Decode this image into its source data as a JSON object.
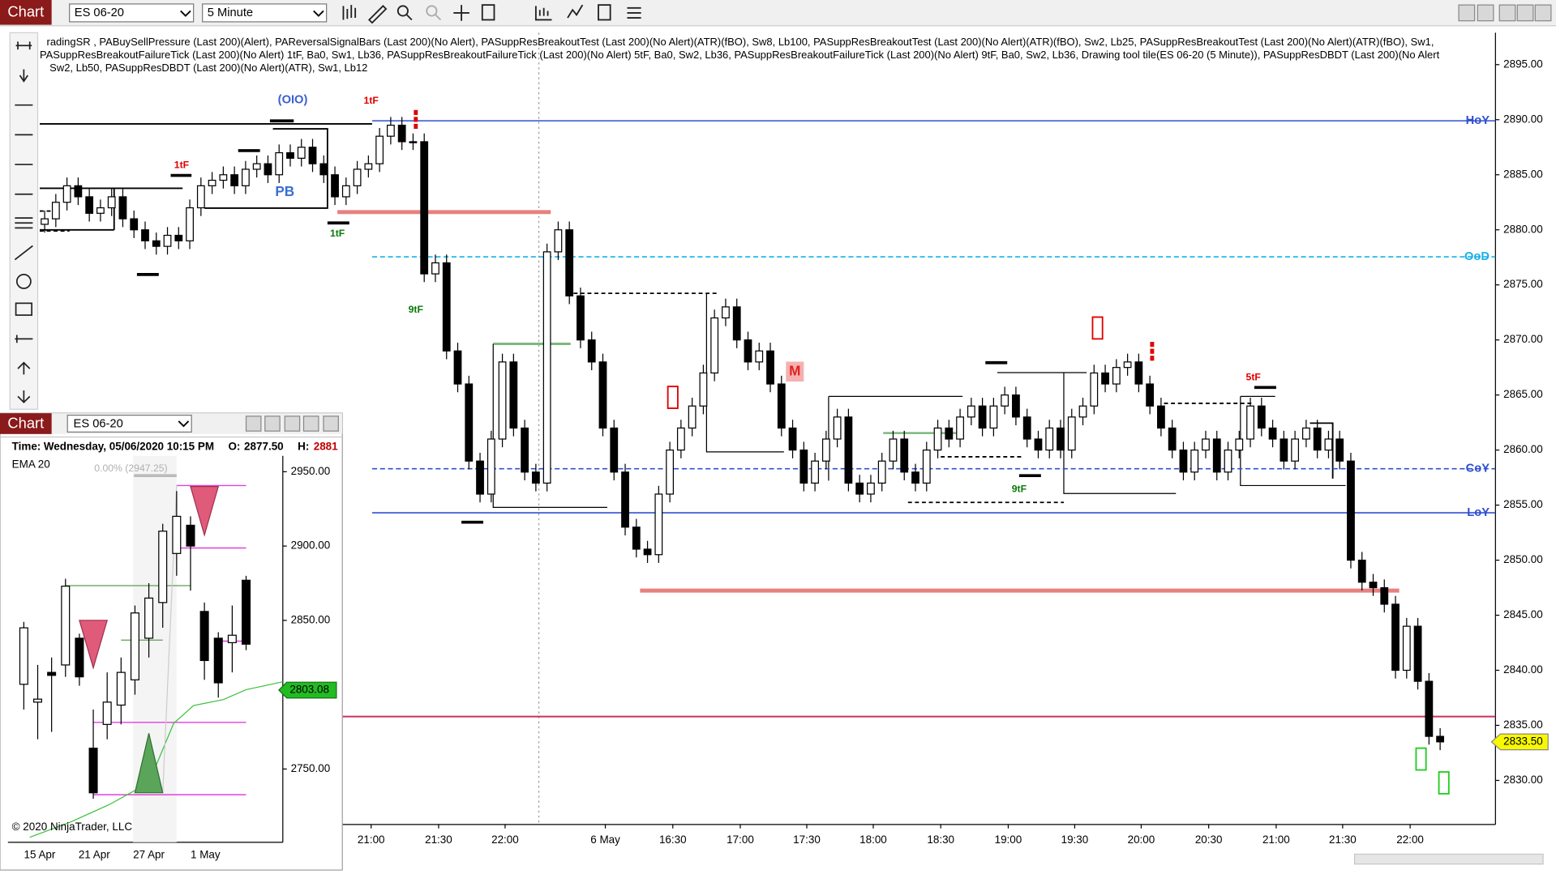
{
  "toolbar": {
    "app": "Chart",
    "instrument": "ES 06-20",
    "interval": "5 Minute"
  },
  "main_chart": {
    "type": "candlestick",
    "indicator_text": [
      "radingSR , PABuySellPressure (Last 200)(Alert), PAReversalSignalBars (Last 200)(No Alert), PASuppResBreakoutTest (Last 200)(No Alert)(ATR)(fBO),  Sw8,  Lb100, PASuppResBreakoutTest (Last 200)(No Alert)(ATR)(fBO),  Sw2,  Lb25, PASuppResBreakoutTest (Last 200)(No Alert)(ATR)(fBO),  Sw1,",
      "PASuppResBreakoutFailureTick (Last 200)(No Alert) 1tF,  Ba0,  Sw1,  Lb36, PASuppResBreakoutFailureTick (Last 200)(No Alert) 5tF,  Ba0,  Sw2,  Lb36, PASuppResBreakoutFailureTick (Last 200)(No Alert) 9tF,  Ba0,  Sw2,  Lb36, Drawing tool tile(ES 06-20 (5 Minute)), PASuppResDBDT (Last 200)(No Alert",
      "Sw2,  Lb50, PASuppResDBDT (Last 200)(No Alert)(ATR),  Sw1,  Lb12"
    ],
    "open": [
      2880.5,
      2881,
      2882.5,
      2884,
      2883,
      2881.5,
      2882,
      2883,
      2881,
      2880,
      2879,
      2878.5,
      2879.5,
      2879,
      2882,
      2884,
      2884.5,
      2885,
      2884,
      2885.5,
      2886,
      2885,
      2887,
      2886.5,
      2887.5,
      2886,
      2885,
      2883,
      2884,
      2885.5,
      2886,
      2888.5,
      2889.5,
      2888,
      2888,
      2876,
      2877,
      2869,
      2866,
      2859,
      2856,
      2861,
      2868,
      2862,
      2858,
      2857,
      2878,
      2880,
      2874,
      2870,
      2868,
      2862,
      2858,
      2853,
      2851,
      2850.5,
      2856,
      2860,
      2862,
      2864,
      2867,
      2872,
      2873,
      2870,
      2868,
      2869,
      2866,
      2862,
      2860,
      2857,
      2859,
      2861,
      2863,
      2857,
      2856,
      2857,
      2859,
      2861,
      2858,
      2857,
      2860,
      2862,
      2861,
      2863,
      2864,
      2862,
      2864,
      2865,
      2863,
      2861,
      2860,
      2862,
      2860,
      2863,
      2864,
      2867,
      2866,
      2867.5,
      2868,
      2866,
      2864,
      2862,
      2860,
      2858,
      2860,
      2861,
      2858,
      2860,
      2861,
      2864,
      2862,
      2861,
      2859,
      2861,
      2862,
      2860,
      2861,
      2859,
      2850,
      2848,
      2847.5,
      2846,
      2840,
      2844,
      2839,
      2834
    ],
    "high": [
      2881.75,
      2883.25,
      2884.75,
      2884.75,
      2883.75,
      2882.75,
      2883.75,
      2883.75,
      2881.75,
      2880.75,
      2879.75,
      2880.25,
      2880.25,
      2882.75,
      2884.75,
      2885.25,
      2885.75,
      2885.75,
      2886.25,
      2886.75,
      2886.75,
      2887.75,
      2887.75,
      2888.25,
      2888.25,
      2886.75,
      2885.75,
      2884.75,
      2886.25,
      2886.75,
      2889.25,
      2890.25,
      2890.25,
      2888.75,
      2888.75,
      2877.75,
      2877.75,
      2869.75,
      2866.75,
      2859.75,
      2861.75,
      2868.75,
      2868.75,
      2862.75,
      2858.75,
      2878.75,
      2880.75,
      2880.75,
      2874.75,
      2870.75,
      2868.75,
      2862.75,
      2858.75,
      2853.75,
      2851.75,
      2856.75,
      2860.75,
      2862.75,
      2864.75,
      2867.75,
      2872.75,
      2873.75,
      2873.75,
      2870.75,
      2869.75,
      2869.75,
      2866.75,
      2862.75,
      2860.75,
      2859.75,
      2861.75,
      2863.75,
      2863.75,
      2857.75,
      2857.75,
      2859.75,
      2861.75,
      2861.75,
      2858.75,
      2860.75,
      2862.75,
      2862.75,
      2863.75,
      2864.75,
      2864.75,
      2864.75,
      2865.75,
      2865.75,
      2863.75,
      2861.75,
      2862.75,
      2862.75,
      2863.75,
      2864.75,
      2867.75,
      2867.75,
      2868.25,
      2868.75,
      2868.75,
      2866.75,
      2864.75,
      2862.75,
      2860.75,
      2860.75,
      2861.75,
      2861.75,
      2860.75,
      2861.75,
      2864.75,
      2864.75,
      2862.75,
      2861.75,
      2861.75,
      2862.75,
      2862.75,
      2861.75,
      2861.75,
      2859.75,
      2850.75,
      2848.75,
      2848.25,
      2846.75,
      2844.75,
      2844.75,
      2839.75,
      2834.75
    ],
    "low": [
      2879.75,
      2880.25,
      2881.75,
      2882.25,
      2880.75,
      2880.75,
      2881.25,
      2880.25,
      2879.25,
      2878.25,
      2877.75,
      2877.75,
      2878.25,
      2878.25,
      2881.25,
      2883.25,
      2883.75,
      2883.25,
      2883.25,
      2884.75,
      2884.25,
      2884.25,
      2885.75,
      2885.75,
      2885.25,
      2884.25,
      2882.25,
      2882.25,
      2883.25,
      2884.75,
      2885.25,
      2887.75,
      2887.25,
      2887.25,
      2875.25,
      2875.25,
      2868.25,
      2865.25,
      2858.25,
      2855.25,
      2855.25,
      2860.25,
      2861.25,
      2857.25,
      2856.25,
      2856.25,
      2877.25,
      2873.25,
      2869.25,
      2867.25,
      2861.25,
      2857.25,
      2852.25,
      2850.25,
      2849.75,
      2849.75,
      2855.25,
      2859.25,
      2861.25,
      2863.25,
      2866.25,
      2871.25,
      2869.25,
      2867.25,
      2867.25,
      2865.25,
      2861.25,
      2859.25,
      2856.25,
      2856.25,
      2858.25,
      2860.25,
      2856.25,
      2855.25,
      2855.25,
      2856.25,
      2858.25,
      2857.25,
      2856.25,
      2856.25,
      2859.25,
      2860.25,
      2860.25,
      2862.25,
      2861.25,
      2861.25,
      2863.25,
      2862.25,
      2860.25,
      2859.25,
      2859.25,
      2859.25,
      2859.25,
      2862.25,
      2863.25,
      2865.25,
      2865.25,
      2866.75,
      2865.25,
      2863.25,
      2861.25,
      2859.25,
      2857.25,
      2857.25,
      2859.25,
      2857.25,
      2857.25,
      2859.25,
      2860.25,
      2861.25,
      2860.25,
      2858.25,
      2858.25,
      2860.25,
      2859.25,
      2859.25,
      2858.25,
      2849.25,
      2847.25,
      2846.75,
      2845.25,
      2839.25,
      2839.25,
      2838.25,
      2833.25,
      2832.75
    ],
    "close": [
      2881,
      2882.5,
      2884,
      2883,
      2881.5,
      2882,
      2883,
      2881,
      2880,
      2879,
      2878.5,
      2879.5,
      2879,
      2882,
      2884,
      2884.5,
      2885,
      2884,
      2885.5,
      2886,
      2885,
      2887,
      2886.5,
      2887.5,
      2886,
      2885,
      2883,
      2884,
      2885.5,
      2886,
      2888.5,
      2889.5,
      2888,
      2888,
      2876,
      2877,
      2869,
      2866,
      2859,
      2856,
      2861,
      2868,
      2862,
      2858,
      2857,
      2878,
      2880,
      2874,
      2870,
      2868,
      2862,
      2858,
      2853,
      2851,
      2850.5,
      2856,
      2860,
      2862,
      2864,
      2867,
      2872,
      2873,
      2870,
      2868,
      2869,
      2866,
      2862,
      2860,
      2857,
      2859,
      2861,
      2863,
      2857,
      2856,
      2857,
      2859,
      2861,
      2858,
      2857,
      2860,
      2862,
      2861,
      2863,
      2864,
      2862,
      2864,
      2865,
      2863,
      2861,
      2860,
      2862,
      2860,
      2863,
      2864,
      2867,
      2866,
      2867.5,
      2868,
      2866,
      2864,
      2862,
      2860,
      2858,
      2860,
      2861,
      2858,
      2860,
      2861,
      2864,
      2862,
      2861,
      2859,
      2861,
      2862,
      2860,
      2861,
      2859,
      2850,
      2848,
      2847.5,
      2846,
      2840,
      2844,
      2839,
      2834,
      2833.5
    ],
    "ylim": [
      2826,
      2897.9
    ],
    "yticks": [
      {
        "value": 2830,
        "label": "2830.00"
      },
      {
        "value": 2835,
        "label": "2835.00"
      },
      {
        "value": 2840,
        "label": "2840.00"
      },
      {
        "value": 2845,
        "label": "2845.00"
      },
      {
        "value": 2850,
        "label": "2850.00"
      },
      {
        "value": 2855,
        "label": "2855.00"
      },
      {
        "value": 2860,
        "label": "2860.00"
      },
      {
        "value": 2865,
        "label": "2865.00"
      },
      {
        "value": 2870,
        "label": "2870.00"
      },
      {
        "value": 2875,
        "label": "2875.00"
      },
      {
        "value": 2880,
        "label": "2880.00"
      },
      {
        "value": 2885,
        "label": "2885.00"
      },
      {
        "value": 2890,
        "label": "2890.00"
      },
      {
        "value": 2895,
        "label": "2895.00"
      }
    ],
    "xtick_labels": [
      "21:00",
      "21:30",
      "22:00",
      "6 May",
      "16:30",
      "17:00",
      "17:30",
      "18:00",
      "18:30",
      "19:00",
      "19:30",
      "20:00",
      "20:30",
      "21:00",
      "21:30",
      "22:00"
    ],
    "levels": [
      {
        "label": "HoY",
        "value": 2889.9,
        "color": "#3050d0",
        "dashed": false
      },
      {
        "label": "OoD",
        "value": 2877.55,
        "color": "#18b0ea",
        "dashed": true
      },
      {
        "label": "CoY",
        "value": 2858.3,
        "color": "#3050d0",
        "dashed": true
      },
      {
        "label": "LoY",
        "value": 2854.3,
        "color": "#3050d0",
        "dashed": false
      },
      {
        "value": 2835.8,
        "color": "#c8325a",
        "dashed": false
      }
    ],
    "last_price": {
      "value": 2833.5,
      "label": "2833.50"
    },
    "annotations": [
      {
        "text": "(OIO)",
        "color": "#3a5fd0"
      },
      {
        "text": "1tF",
        "color": "#e00000"
      },
      {
        "text": "1tF",
        "color": "#e00000"
      },
      {
        "text": "PB",
        "color": "#3a6fd0"
      },
      {
        "text": "1tF",
        "color": "#0a7a0a"
      },
      {
        "text": "9tF",
        "color": "#0a7a0a"
      },
      {
        "text": "M",
        "color": "#e02020"
      },
      {
        "text": "9tF",
        "color": "#0a7a0a"
      },
      {
        "text": "5tF",
        "color": "#e00000"
      }
    ]
  },
  "inset_chart": {
    "type": "candlestick",
    "app": "Chart",
    "instrument": "ES 06-20",
    "time_label": "Time:",
    "time": "Wednesday, 05/06/2020 10:15 PM",
    "open_label": "O:",
    "open_value": "2877.50",
    "high_label": "H:",
    "high_value": "2881",
    "indicator": "EMA   20",
    "note": "0.00% (2947.25)",
    "copyright": "© 2020 NinjaTrader, LLC",
    "open": [
      2807,
      2795,
      2815,
      2820,
      2838,
      2764,
      2780,
      2793,
      2810,
      2838,
      2862,
      2895,
      2914,
      2856,
      2838,
      2835,
      2877
    ],
    "high": [
      2849,
      2820,
      2825,
      2878,
      2841,
      2790,
      2815,
      2825,
      2860,
      2875,
      2915,
      2937,
      2920,
      2862,
      2842,
      2860,
      2880
    ],
    "low": [
      2790,
      2770,
      2775,
      2812,
      2806,
      2730,
      2770,
      2780,
      2800,
      2825,
      2845,
      2880,
      2870,
      2810,
      2798,
      2815,
      2830
    ],
    "close": [
      2845,
      2797,
      2813,
      2873,
      2812,
      2734,
      2795,
      2815,
      2855,
      2865,
      2910,
      2920,
      2900,
      2823,
      2808,
      2840,
      2834
    ],
    "ylim": [
      2700.7,
      2960.7
    ],
    "yticks": [
      {
        "value": 2750,
        "label": "2750.00"
      },
      {
        "value": 2850,
        "label": "2850.00"
      },
      {
        "value": 2900,
        "label": "2900.00"
      },
      {
        "value": 2950,
        "label": "2950.00"
      }
    ],
    "xtick_labels": [
      "15 Apr",
      "21 Apr",
      "27 Apr",
      "1 May"
    ],
    "ema_tag": {
      "value": 2803.08,
      "label": "2803.08"
    }
  }
}
